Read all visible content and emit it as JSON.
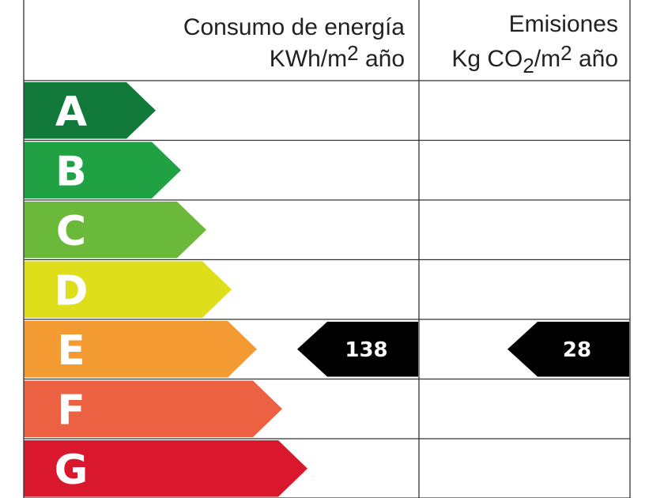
{
  "header": {
    "energy_title": "Consumo de energía",
    "energy_unit_base": "KWh/m",
    "energy_unit_exp": "2",
    "energy_unit_suffix": " año",
    "emissions_title": "Emisiones",
    "emissions_unit_base": "Kg CO",
    "emissions_unit_sub": "2",
    "emissions_unit_mid": "/m",
    "emissions_unit_exp": "2",
    "emissions_unit_suffix": " año"
  },
  "chart_data": {
    "type": "table",
    "grades": [
      {
        "letter": "A",
        "color": "#117a3b"
      },
      {
        "letter": "B",
        "color": "#20a244"
      },
      {
        "letter": "C",
        "color": "#6ab93b"
      },
      {
        "letter": "D",
        "color": "#dede1a"
      },
      {
        "letter": "E",
        "color": "#f39a32"
      },
      {
        "letter": "F",
        "color": "#ec6142"
      },
      {
        "letter": "G",
        "color": "#d9182e"
      }
    ],
    "energy_consumption": {
      "grade": "E",
      "value": "138"
    },
    "emissions": {
      "grade": "E",
      "value": "28"
    }
  }
}
